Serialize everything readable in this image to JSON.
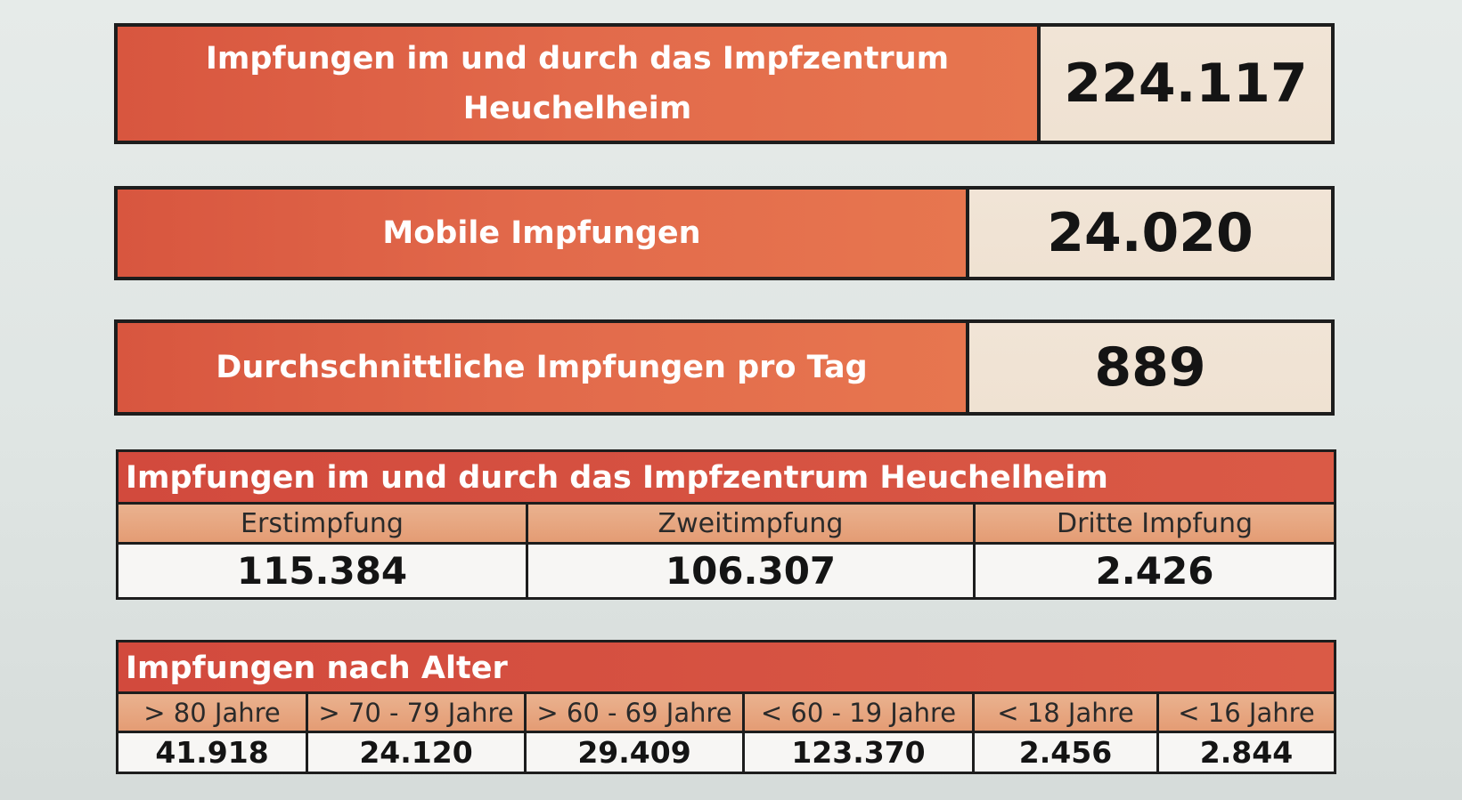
{
  "stats": [
    {
      "label": "Impfungen im und durch das Impfzentrum Heuchelheim",
      "value": "224.117"
    },
    {
      "label": "Mobile Impfungen",
      "value": "24.020"
    },
    {
      "label": "Durchschnittliche Impfungen pro Tag",
      "value": "889"
    }
  ],
  "dose_table": {
    "title": "Impfungen im und durch das Impfzentrum Heuchelheim",
    "columns": [
      "Erstimpfung",
      "Zweitimpfung",
      "Dritte Impfung"
    ],
    "values": [
      "115.384",
      "106.307",
      "2.426"
    ]
  },
  "age_table": {
    "title": "Impfungen nach Alter",
    "columns": [
      "> 80 Jahre",
      "> 70 - 79 Jahre",
      "> 60 - 69 Jahre",
      "< 60 - 19 Jahre",
      "< 18 Jahre",
      "< 16 Jahre"
    ],
    "values": [
      "41.918",
      "24.120",
      "29.409",
      "123.370",
      "2.456",
      "2.844"
    ]
  },
  "colors": {
    "label_red": "#d8563f",
    "header_peach": "#e49c74",
    "value_beige": "#f1e4d6"
  }
}
